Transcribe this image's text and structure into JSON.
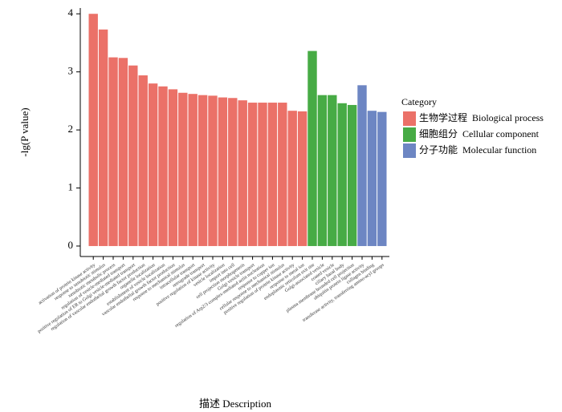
{
  "chart_data": {
    "type": "bar",
    "y_label": "-lg(P value)",
    "x_label": "描述 Description",
    "legend_title": "Category",
    "ylim": [
      -0.18,
      4.1
    ],
    "yticks": [
      0,
      1,
      2,
      3,
      4
    ],
    "series": [
      {
        "name": "生物学过程  Biological process",
        "color": "#eb7168",
        "categories": [
          "activation of protein kinase activity",
          "response to xenobiotic stimulus",
          "xenobiotic metabolic process",
          "regulation of vesicle-mediated transport",
          "positive regulation of ER to Golgi vesicle-mediated transport",
          "regulation of vascular endothelial growth factor production",
          "organelle localization",
          "establishment of vesicle localization",
          "vascular endothelial growth factor production",
          "response to mechanical stimulus",
          "intracellular transport",
          "retrograde transport",
          "positive regulation of kinase activity",
          "vesicle localization",
          "import into cell",
          "cell projection morphogenesis",
          "Golgi vesicle transport",
          "regulation of Arp2/3 complex-mediated actin nucleation",
          "response to copper ion",
          "cellular response to mechanical stimulus",
          "positive regulation of protein kinase activity",
          "response to metal ion"
        ],
        "values": [
          4.0,
          3.73,
          3.25,
          3.24,
          3.11,
          2.94,
          2.8,
          2.75,
          2.7,
          2.64,
          2.62,
          2.6,
          2.59,
          2.56,
          2.55,
          2.51,
          2.47,
          2.47,
          2.47,
          2.47,
          2.33,
          2.32
        ]
      },
      {
        "name": "细胞组分  Cellular component",
        "color": "#47ab45",
        "categories": [
          "endoplasmic reticulum exit site",
          "Golgi-associated vesicle",
          "coated vesicle",
          "ciliary basal body",
          "plasma membrane bounded cell projection"
        ],
        "values": [
          3.36,
          2.6,
          2.6,
          2.46,
          2.43
        ]
      },
      {
        "name": "分子功能  Molecular function",
        "color": "#6d86c3",
        "categories": [
          "ubiquitin protein ligase activity",
          "collagen binding",
          "transferase activity, transferring amino-acyl groups"
        ],
        "values": [
          2.77,
          2.33,
          2.31
        ]
      }
    ]
  }
}
